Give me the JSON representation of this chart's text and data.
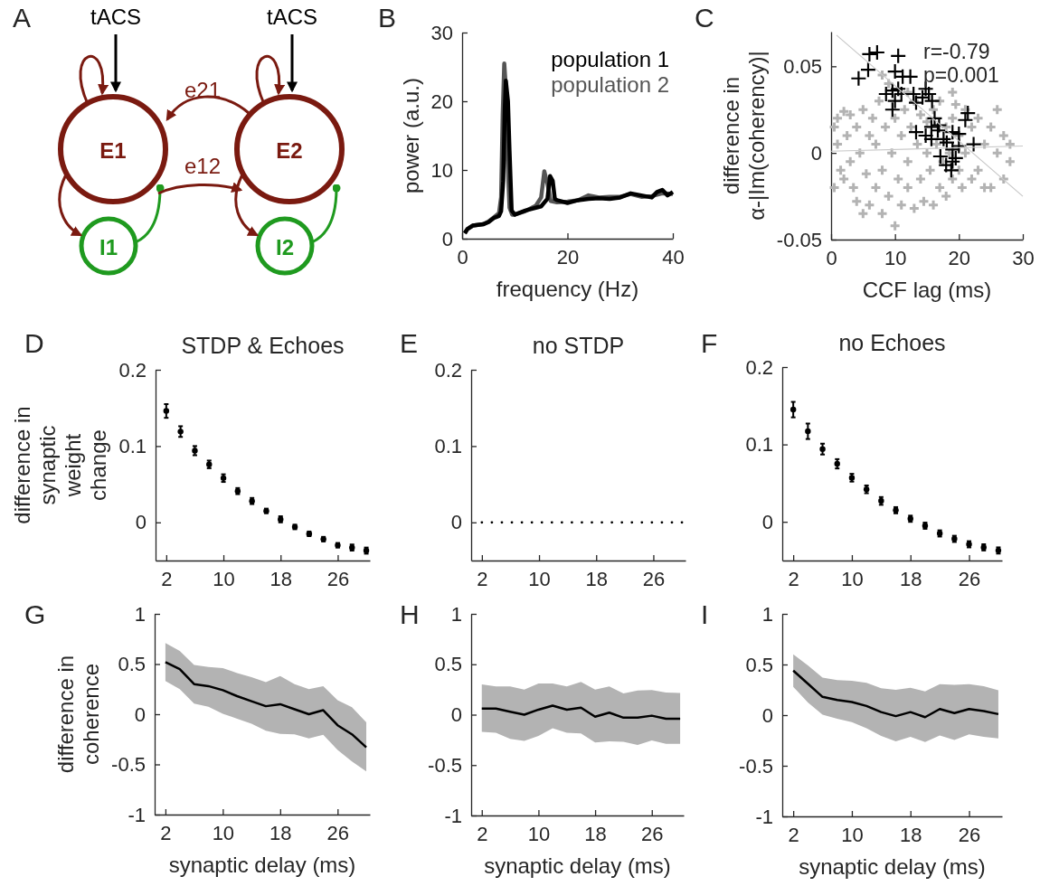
{
  "chart_data": [
    {
      "type": "other",
      "annotations": [
        "A",
        "tACS",
        "tACS",
        "E1",
        "E2",
        "I1",
        "I2",
        "e21",
        "e12"
      ]
    },
    {
      "type": "line",
      "xlabel": "frequency (Hz)",
      "ylabel": "power (a.u.)",
      "xlim": [
        0,
        40
      ],
      "xticks": [
        0,
        20,
        40
      ],
      "ylim": [
        0,
        30
      ],
      "yticks": [
        0,
        10,
        20,
        30
      ],
      "legend": "top right",
      "annotations": [
        "B"
      ],
      "series": [
        {
          "name": "population 1",
          "color": "#000000",
          "x": [
            0.5,
            1,
            2,
            4,
            5,
            6,
            7,
            7.4,
            7.8,
            8.1,
            8.3,
            8.7,
            9,
            9.4,
            10,
            12,
            14,
            15,
            16.2,
            16.7,
            17.2,
            17.6,
            18,
            20,
            22,
            24,
            26,
            28,
            30,
            32,
            34,
            36,
            37,
            38,
            39,
            40
          ],
          "values": [
            0.8,
            1.4,
            1.9,
            2.1,
            2.4,
            3.0,
            3.3,
            4,
            8.4,
            19,
            23,
            20,
            12.8,
            4.1,
            3.5,
            4.1,
            4.5,
            4.7,
            5.8,
            9.1,
            8.4,
            5.8,
            5.6,
            5.2,
            5.6,
            5.8,
            5.9,
            5.8,
            6,
            6.6,
            6.3,
            6,
            6.8,
            7.1,
            6.3,
            6.8
          ]
        },
        {
          "name": "population 2",
          "color": "#555555",
          "x": [
            0.5,
            1,
            2,
            4,
            5,
            6,
            7,
            7.4,
            7.7,
            8,
            8.3,
            8.6,
            9,
            9.5,
            10,
            12,
            14,
            15,
            15.6,
            16.2,
            16.8,
            18,
            20,
            22,
            24,
            26,
            28,
            30,
            32,
            34,
            36,
            38,
            40
          ],
          "values": [
            0.8,
            1.4,
            1.9,
            2.1,
            2.5,
            3.1,
            3.7,
            6,
            18,
            25.5,
            22,
            12,
            4.5,
            3.5,
            3.5,
            4,
            4.8,
            6,
            9.8,
            8,
            5.5,
            5.3,
            5.4,
            5.6,
            6.3,
            6.0,
            6.1,
            6.1,
            6.5,
            6.1,
            6.2,
            6.6,
            6.5
          ]
        }
      ]
    },
    {
      "type": "scatter",
      "xlabel": "CCF lag (ms)",
      "ylabel": "difference in α-|Im(coherency)|",
      "xlim": [
        0,
        30
      ],
      "xticks": [
        0,
        10,
        20,
        30
      ],
      "ylim": [
        -0.05,
        0.07
      ],
      "yticks": [
        -0.05,
        0,
        0.05
      ],
      "marker": "cross",
      "annotations": [
        "C",
        "r=-0.79",
        "p=0.001"
      ],
      "series": [
        {
          "color": "#b3b3b3",
          "x": [
            0.5,
            0.5,
            1,
            1,
            1.5,
            2,
            2,
            2.5,
            3,
            3,
            3.5,
            4,
            4,
            4.5,
            5,
            5,
            5.5,
            6,
            6,
            6.5,
            7,
            7,
            7.5,
            8,
            8,
            8.5,
            9,
            9,
            9.5,
            10,
            10,
            10.5,
            11,
            11,
            11.5,
            12,
            12,
            12.5,
            13,
            13,
            13.5,
            14,
            14,
            14.5,
            15,
            15,
            15.5,
            16,
            16,
            16.5,
            17,
            17,
            17.5,
            18,
            18,
            18.5,
            19,
            19,
            19.5,
            20,
            20,
            20.5,
            21,
            21,
            22,
            22,
            23,
            23,
            24,
            24,
            25,
            25,
            26,
            26,
            27,
            27,
            28,
            28,
            8,
            12,
            19
          ],
          "values": [
            0.015,
            -0.02,
            0.005,
            0.02,
            -0.01,
            0.024,
            -0.015,
            0.01,
            -0.005,
            0.022,
            -0.02,
            0.015,
            -0.028,
            0.0,
            0.025,
            -0.035,
            -0.012,
            0.01,
            -0.03,
            0.02,
            -0.02,
            0.005,
            0.03,
            -0.01,
            -0.035,
            0.015,
            -0.025,
            0.04,
            0.0,
            0.02,
            -0.042,
            -0.015,
            0.01,
            -0.03,
            0.025,
            -0.005,
            -0.02,
            0.015,
            -0.032,
            0.03,
            0.005,
            -0.015,
            0.022,
            -0.028,
            0.0,
            0.018,
            -0.01,
            0.025,
            -0.03,
            0.005,
            -0.02,
            0.03,
            -0.005,
            0.015,
            -0.025,
            0.0,
            0.02,
            -0.015,
            0.028,
            -0.01,
            0.01,
            -0.02,
            0.025,
            0.0,
            -0.015,
            0.015,
            0.02,
            -0.01,
            0.005,
            -0.02,
            0.015,
            -0.02,
            0.025,
            0.0,
            0.01,
            -0.015,
            0.005,
            -0.005,
            0.045,
            0.035,
            0.035
          ]
        },
        {
          "color": "#000000",
          "x": [
            6.0,
            7.2,
            10.5,
            4.3,
            5.8,
            10,
            11.2,
            12.4,
            8.6,
            9.6,
            10.5,
            10,
            9.6,
            11,
            12.9,
            14.3,
            15.3,
            15.8,
            13.3,
            14.8,
            16.2,
            21.4,
            21,
            13.3,
            14.8,
            15.7,
            16.7,
            17.6,
            19,
            20,
            22.3,
            17.1,
            18,
            19,
            19.5,
            18.8,
            20,
            16.9,
            15.7,
            18.1,
            19
          ],
          "values": [
            0.057,
            0.058,
            0.056,
            0.043,
            0.048,
            0.047,
            0.044,
            0.044,
            0.034,
            0.036,
            0.037,
            0.03,
            0.025,
            0.034,
            0.034,
            0.032,
            0.034,
            0.03,
            0.029,
            0.037,
            0.02,
            0.023,
            0.019,
            0.012,
            0.01,
            0.008,
            0.013,
            0.008,
            0.012,
            0.011,
            0.005,
            -0.002,
            -0.007,
            -0.005,
            -0.003,
            -0.01,
            0.004,
            0.016,
            0.015,
            0.006,
            0.002
          ]
        },
        {
          "type": "line",
          "marker": "none",
          "color": "#c8c8c8",
          "x": [
            0.85,
            30
          ],
          "values": [
            0.068,
            -0.025
          ]
        },
        {
          "type": "line",
          "marker": "none",
          "color": "#c8c8c8",
          "x": [
            0,
            30
          ],
          "values": [
            0.001,
            0.004
          ]
        }
      ]
    },
    {
      "type": "scatter",
      "title": "STDP & Echoes",
      "ylabel": "difference in synaptic weight change",
      "xlim": [
        0.5,
        30.5
      ],
      "xticks": [
        2,
        10,
        18,
        26
      ],
      "ylim": [
        -0.05,
        0.2
      ],
      "yticks": [
        0,
        0.1,
        0.2
      ],
      "marker": "circle",
      "annotations": [
        "D"
      ],
      "x": [
        2,
        4,
        6,
        8,
        10,
        12,
        14,
        16,
        18,
        20,
        22,
        24,
        26,
        28,
        30
      ],
      "series": [
        {
          "color": "#000000",
          "values": [
            0.146,
            0.119,
            0.094,
            0.076,
            0.058,
            0.041,
            0.028,
            0.015,
            0.004,
            -0.006,
            -0.015,
            -0.022,
            -0.03,
            -0.033,
            -0.037
          ],
          "errors": [
            0.009,
            0.007,
            0.006,
            0.005,
            0.005,
            0.004,
            0.004,
            0.003,
            0.004,
            0.003,
            0.003,
            0.003,
            0.003,
            0.004,
            0.004
          ]
        }
      ]
    },
    {
      "type": "line",
      "title": "no STDP",
      "xlim": [
        0.5,
        30.5
      ],
      "xticks": [
        2,
        10,
        18,
        26
      ],
      "ylim": [
        -0.05,
        0.2
      ],
      "yticks": [
        0,
        0.1,
        0.2
      ],
      "line_style": "dotted",
      "annotations": [
        "E"
      ],
      "x": [
        2,
        4,
        6,
        8,
        10,
        12,
        14,
        16,
        18,
        20,
        22,
        24,
        26,
        28,
        30
      ],
      "series": [
        {
          "color": "#000000",
          "values": [
            0,
            0,
            0,
            0,
            0,
            0,
            0,
            0,
            0,
            0,
            0,
            0,
            0,
            0,
            0
          ]
        }
      ]
    },
    {
      "type": "scatter",
      "title": "no Echoes",
      "xlim": [
        0.5,
        30.5
      ],
      "xticks": [
        2,
        10,
        18,
        26
      ],
      "ylim": [
        -0.05,
        0.2
      ],
      "yticks": [
        0,
        0.1,
        0.2
      ],
      "marker": "circle",
      "annotations": [
        "F"
      ],
      "x": [
        2,
        4,
        6,
        8,
        10,
        12,
        14,
        16,
        18,
        20,
        22,
        24,
        26,
        28,
        30
      ],
      "series": [
        {
          "color": "#000000",
          "values": [
            0.145,
            0.117,
            0.094,
            0.075,
            0.057,
            0.042,
            0.027,
            0.015,
            0.004,
            -0.005,
            -0.015,
            -0.022,
            -0.029,
            -0.033,
            -0.037
          ],
          "errors": [
            0.01,
            0.01,
            0.007,
            0.006,
            0.005,
            0.005,
            0.005,
            0.004,
            0.004,
            0.004,
            0.004,
            0.004,
            0.004,
            0.004,
            0.004
          ]
        }
      ]
    },
    {
      "type": "line",
      "xlabel": "synaptic delay (ms)",
      "ylabel": "difference in coherence",
      "xlim": [
        0.5,
        30.5
      ],
      "xticks": [
        2,
        10,
        18,
        26
      ],
      "ylim": [
        -1,
        1
      ],
      "yticks": [
        -1,
        -0.5,
        0,
        0.5,
        1
      ],
      "annotations": [
        "G"
      ],
      "x": [
        2,
        4,
        6,
        8,
        10,
        12,
        14,
        16,
        18,
        20,
        22,
        24,
        26,
        28,
        30
      ],
      "series": [
        {
          "color": "#000000",
          "values": [
            0.52,
            0.45,
            0.3,
            0.28,
            0.24,
            0.18,
            0.13,
            0.08,
            0.1,
            0.05,
            0,
            0.04,
            -0.11,
            -0.2,
            -0.33
          ],
          "upper": [
            0.71,
            0.63,
            0.49,
            0.47,
            0.46,
            0.41,
            0.37,
            0.32,
            0.38,
            0.3,
            0.25,
            0.28,
            0.14,
            0.07,
            -0.08
          ],
          "lower": [
            0.33,
            0.25,
            0.105,
            0.075,
            0.005,
            -0.045,
            -0.095,
            -0.165,
            -0.195,
            -0.2,
            -0.24,
            -0.205,
            -0.355,
            -0.47,
            -0.57
          ]
        }
      ]
    },
    {
      "type": "line",
      "xlabel": "synaptic delay (ms)",
      "xlim": [
        0.5,
        30.5
      ],
      "xticks": [
        2,
        10,
        18,
        26
      ],
      "ylim": [
        -1,
        1
      ],
      "yticks": [
        -1,
        -0.5,
        0,
        0.5,
        1
      ],
      "annotations": [
        "H"
      ],
      "x": [
        2,
        4,
        6,
        8,
        10,
        12,
        14,
        16,
        18,
        20,
        22,
        24,
        26,
        28,
        30
      ],
      "series": [
        {
          "color": "#000000",
          "values": [
            0.06,
            0.06,
            0.03,
            0,
            0.05,
            0.09,
            0.05,
            0.07,
            -0.02,
            0.02,
            -0.03,
            -0.03,
            -0.01,
            -0.04,
            -0.04
          ],
          "upper": [
            0.3,
            0.28,
            0.28,
            0.25,
            0.31,
            0.31,
            0.28,
            0.325,
            0.25,
            0.28,
            0.21,
            0.24,
            0.245,
            0.22,
            0.215
          ],
          "lower": [
            -0.17,
            -0.18,
            -0.24,
            -0.26,
            -0.21,
            -0.135,
            -0.18,
            -0.185,
            -0.275,
            -0.265,
            -0.27,
            -0.3,
            -0.255,
            -0.29,
            -0.29
          ]
        }
      ]
    },
    {
      "type": "line",
      "xlabel": "synaptic delay (ms)",
      "xlim": [
        0.5,
        30.5
      ],
      "xticks": [
        2,
        10,
        18,
        26
      ],
      "ylim": [
        -1,
        1
      ],
      "yticks": [
        -1,
        -0.5,
        0,
        0.5,
        1
      ],
      "annotations": [
        "I"
      ],
      "x": [
        2,
        4,
        6,
        8,
        10,
        12,
        14,
        16,
        18,
        20,
        22,
        24,
        26,
        28,
        30
      ],
      "series": [
        {
          "color": "#000000",
          "values": [
            0.44,
            0.31,
            0.18,
            0.15,
            0.13,
            0.09,
            0.03,
            -0.01,
            0.03,
            -0.02,
            0.06,
            0.02,
            0.06,
            0.04,
            0.01
          ],
          "upper": [
            0.6,
            0.49,
            0.37,
            0.345,
            0.34,
            0.32,
            0.265,
            0.25,
            0.27,
            0.235,
            0.305,
            0.3,
            0.305,
            0.285,
            0.245
          ],
          "lower": [
            0.28,
            0.125,
            0.005,
            -0.035,
            -0.07,
            -0.13,
            -0.205,
            -0.26,
            -0.215,
            -0.265,
            -0.2,
            -0.245,
            -0.19,
            -0.215,
            -0.23
          ]
        }
      ]
    }
  ]
}
